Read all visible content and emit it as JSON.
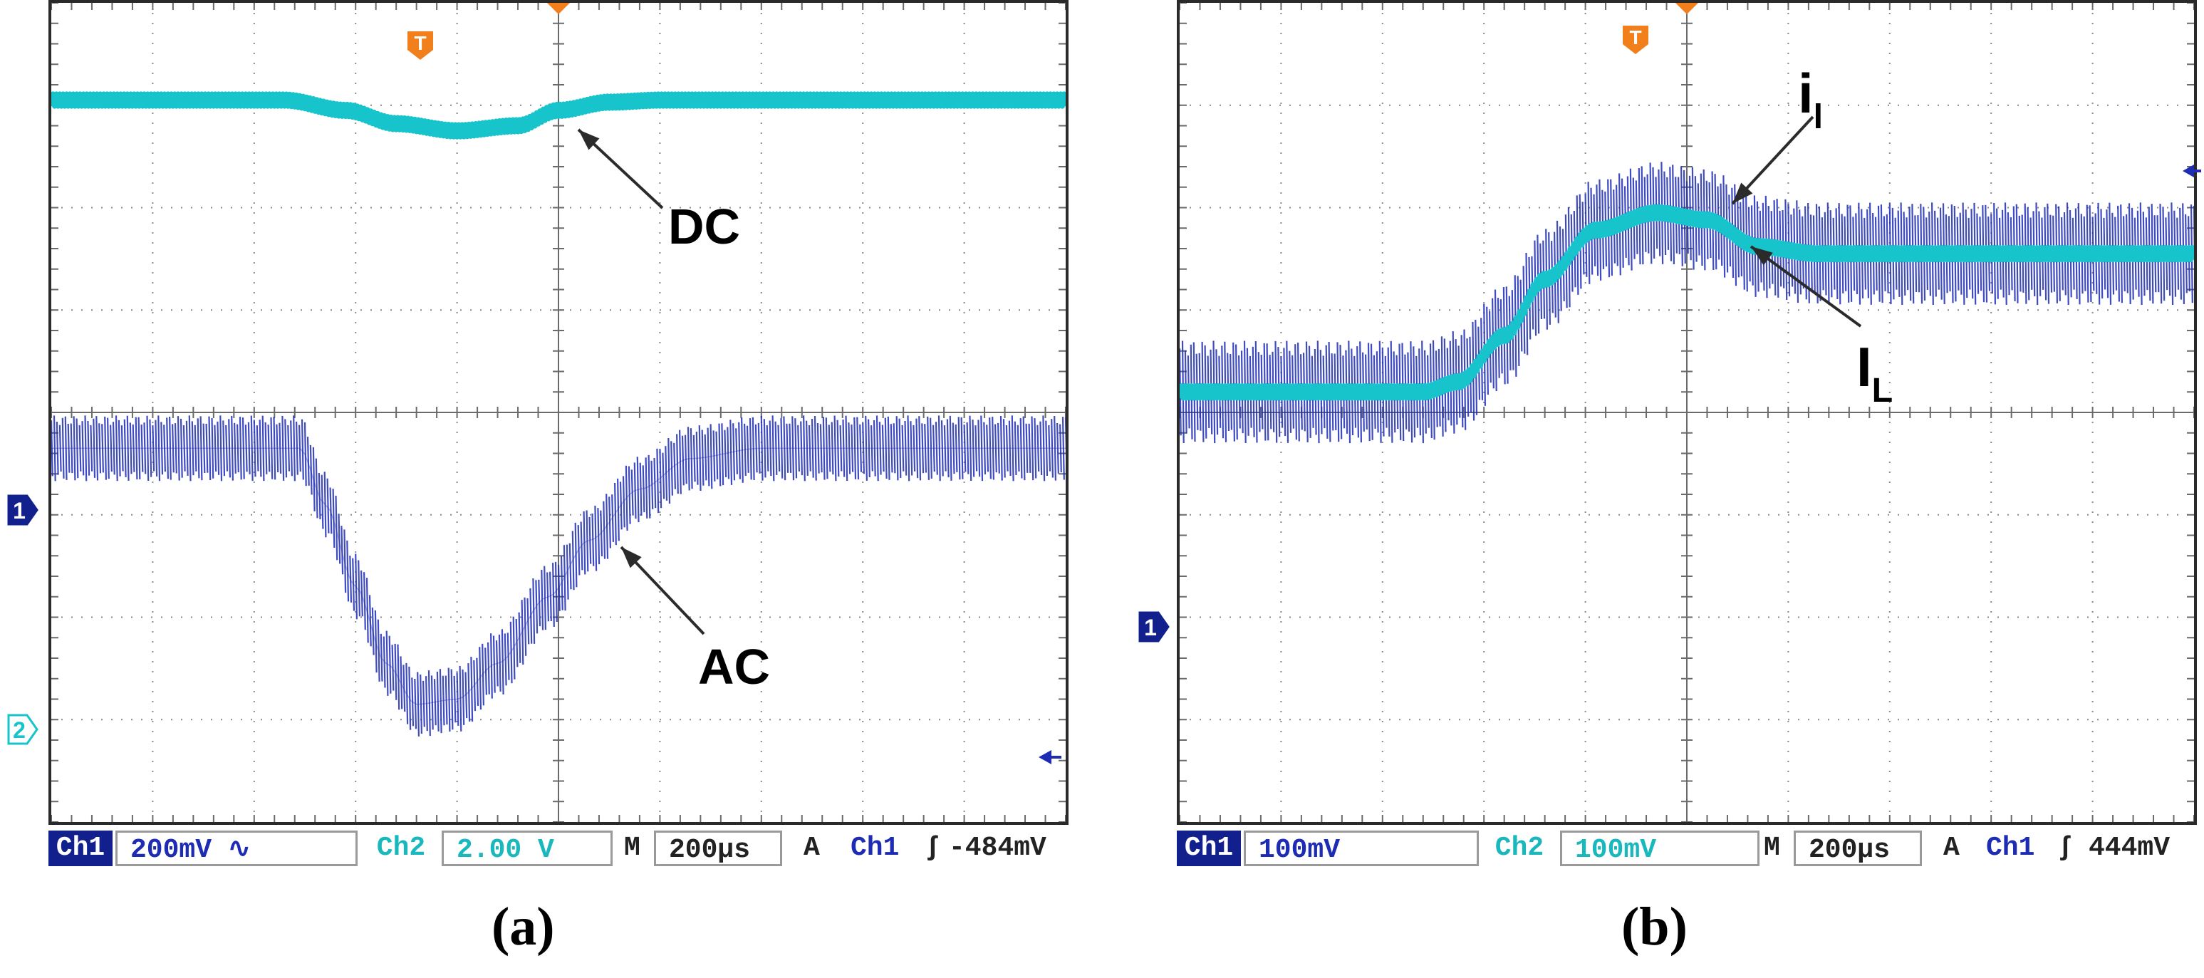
{
  "figure": {
    "panel_a": {
      "caption": "(a)",
      "status": {
        "ch1_tag": "Ch1",
        "ch1_scale": "200mV ∿",
        "ch2_tag": "Ch2",
        "ch2_scale": "2.00 V",
        "m_tag": "M",
        "timebase": "200µs",
        "a_tag": "A",
        "trig_src": "Ch1",
        "trig_sym": "ʃ",
        "trig_level": "-484mV"
      },
      "markers": {
        "trigger": "T",
        "ch1": "1",
        "ch2": "2"
      }
    },
    "panel_b": {
      "caption": "(b)",
      "status": {
        "ch1_tag": "Ch1",
        "ch1_scale": "100mV",
        "ch2_tag": "Ch2",
        "ch2_scale": "100mV",
        "m_tag": "M",
        "timebase": "200µs",
        "a_tag": "A",
        "trig_src": "Ch1",
        "trig_sym": "ʃ",
        "trig_level": "444mV"
      },
      "markers": {
        "trigger": "T",
        "ch1": "1"
      }
    }
  },
  "colors": {
    "ch1": "#1d2bb5",
    "ch2": "#18c4cc",
    "trigger": "#f07f1c",
    "grid": "#8a8a8a"
  },
  "chart_data": [
    {
      "type": "line",
      "title": "(a)",
      "x_unit": "divisions (200 µs/div)",
      "xlim": [
        0,
        10
      ],
      "ylim": [
        0,
        8
      ],
      "grid": true,
      "annotations": [
        "DC",
        "AC"
      ],
      "series": [
        {
          "name": "DC",
          "channel": "Ch2",
          "x": [
            0,
            2.3,
            2.9,
            3.4,
            4.0,
            4.6,
            5.0,
            5.5,
            6.0,
            10
          ],
          "y": [
            7.05,
            7.05,
            6.95,
            6.82,
            6.75,
            6.8,
            6.95,
            7.03,
            7.05,
            7.05
          ],
          "ripple_amplitude": 0.06
        },
        {
          "name": "AC",
          "channel": "Ch1",
          "x": [
            0,
            2.45,
            2.7,
            3.0,
            3.3,
            3.6,
            4.0,
            4.4,
            4.9,
            5.3,
            5.8,
            6.3,
            7.0,
            10
          ],
          "y": [
            3.65,
            3.65,
            3.1,
            2.3,
            1.55,
            1.15,
            1.2,
            1.55,
            2.2,
            2.75,
            3.25,
            3.55,
            3.65,
            3.65
          ],
          "ripple_amplitude": 0.32
        }
      ]
    },
    {
      "type": "line",
      "title": "(b)",
      "x_unit": "divisions (200 µs/div)",
      "xlim": [
        0,
        10
      ],
      "ylim": [
        0,
        8
      ],
      "grid": true,
      "annotations": [
        "i_l",
        "I_L"
      ],
      "series": [
        {
          "name": "i_l",
          "channel": "Ch1",
          "x": [
            0,
            2.4,
            2.75,
            3.2,
            3.6,
            4.1,
            4.7,
            5.2,
            5.7,
            6.3,
            10
          ],
          "y": [
            4.2,
            4.2,
            4.3,
            4.75,
            5.3,
            5.78,
            5.95,
            5.88,
            5.62,
            5.55,
            5.55
          ],
          "ripple_amplitude": 0.5
        },
        {
          "name": "I_L",
          "channel": "Ch2",
          "x": [
            0,
            2.4,
            2.75,
            3.2,
            3.6,
            4.1,
            4.7,
            5.2,
            5.7,
            6.3,
            10
          ],
          "y": [
            4.2,
            4.2,
            4.3,
            4.75,
            5.3,
            5.78,
            5.95,
            5.88,
            5.62,
            5.55,
            5.55
          ],
          "ripple_amplitude": 0.06
        }
      ]
    }
  ]
}
